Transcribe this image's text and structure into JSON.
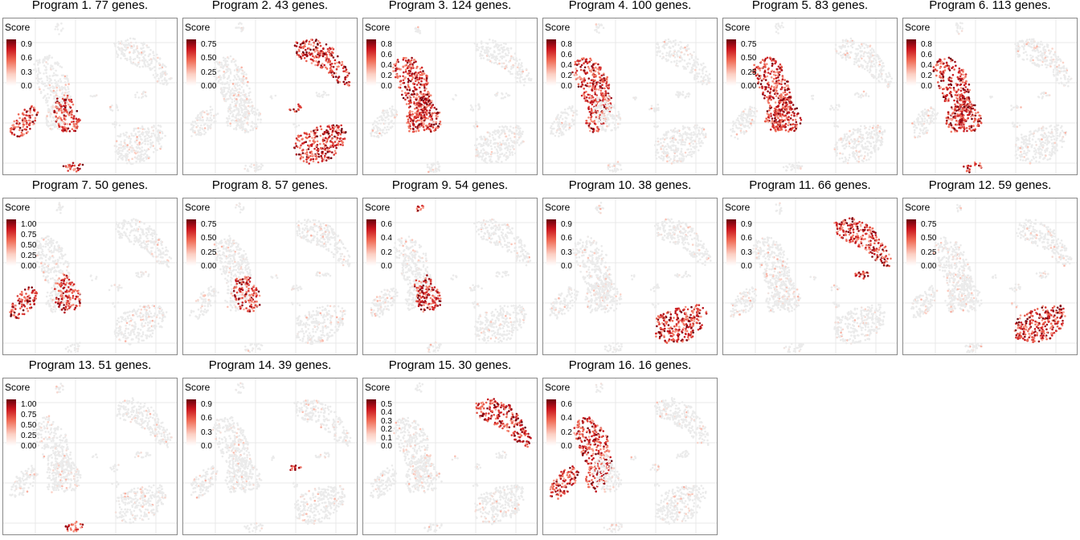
{
  "colors": {
    "low": "#ebebeb",
    "mid": "#f4a08c",
    "high": "#d7191c",
    "max": "#67000d",
    "frame": "#8a8a8a",
    "grid": "#e9e9e9"
  },
  "legend_title": "Score",
  "chart_data": [
    {
      "type": "scatter",
      "title": "Program 1. 77 genes.",
      "legend_title": "Score",
      "ticks": [
        "0.9",
        "0.6",
        "0.3",
        "0.0"
      ],
      "highlight": [
        "left-arm",
        "mid-right-blob",
        "bottom-small"
      ]
    },
    {
      "type": "scatter",
      "title": "Program 2. 43 genes.",
      "legend_title": "Score",
      "ticks": [
        "0.75",
        "0.50",
        "0.25",
        "0.00"
      ],
      "highlight": [
        "bottom-right-ring",
        "upper-right-arm",
        "small-right"
      ]
    },
    {
      "type": "scatter",
      "title": "Program 3. 124 genes.",
      "legend_title": "Score",
      "ticks": [
        "0.8",
        "0.6",
        "0.4",
        "0.2",
        "0.0"
      ],
      "highlight": [
        "main-body",
        "mid-right-blob"
      ]
    },
    {
      "type": "scatter",
      "title": "Program 4. 100 genes.",
      "legend_title": "Score",
      "ticks": [
        "0.8",
        "0.6",
        "0.4",
        "0.2",
        "0.0"
      ],
      "highlight": [
        "main-body"
      ]
    },
    {
      "type": "scatter",
      "title": "Program 5. 83 genes.",
      "legend_title": "Score",
      "ticks": [
        "0.75",
        "0.50",
        "0.25",
        "0.00"
      ],
      "highlight": [
        "main-body",
        "mid-right-blob"
      ]
    },
    {
      "type": "scatter",
      "title": "Program 6. 113 genes.",
      "legend_title": "Score",
      "ticks": [
        "0.8",
        "0.6",
        "0.4",
        "0.2",
        "0.0"
      ],
      "highlight": [
        "mid-right-blob",
        "main-body",
        "bottom-small"
      ]
    },
    {
      "type": "scatter",
      "title": "Program 7. 50 genes.",
      "legend_title": "Score",
      "ticks": [
        "1.00",
        "0.75",
        "0.50",
        "0.25",
        "0.00"
      ],
      "highlight": [
        "left-arm",
        "mid-right-blob"
      ]
    },
    {
      "type": "scatter",
      "title": "Program 8. 57 genes.",
      "legend_title": "Score",
      "ticks": [
        "0.75",
        "0.50",
        "0.25",
        "0.00"
      ],
      "highlight": [
        "mid-right-blob"
      ]
    },
    {
      "type": "scatter",
      "title": "Program 9. 54 genes.",
      "legend_title": "Score",
      "ticks": [
        "0.6",
        "0.4",
        "0.2",
        "0.0"
      ],
      "highlight": [
        "top-tiny",
        "mid-right-blob"
      ]
    },
    {
      "type": "scatter",
      "title": "Program 10. 38 genes.",
      "legend_title": "Score",
      "ticks": [
        "0.9",
        "0.6",
        "0.3",
        "0.0"
      ],
      "highlight": [
        "bottom-right-ring"
      ]
    },
    {
      "type": "scatter",
      "title": "Program 11. 66 genes.",
      "legend_title": "Score",
      "ticks": [
        "0.9",
        "0.6",
        "0.3",
        "0.0"
      ],
      "highlight": [
        "upper-right-arm",
        "small-mid"
      ]
    },
    {
      "type": "scatter",
      "title": "Program 12. 59 genes.",
      "legend_title": "Score",
      "ticks": [
        "0.75",
        "0.50",
        "0.25",
        "0.00"
      ],
      "highlight": [
        "bottom-right-ring"
      ]
    },
    {
      "type": "scatter",
      "title": "Program 13. 51 genes.",
      "legend_title": "Score",
      "ticks": [
        "1.00",
        "0.75",
        "0.50",
        "0.25",
        "0.00"
      ],
      "highlight": [
        "bottom-small"
      ]
    },
    {
      "type": "scatter",
      "title": "Program 14. 39 genes.",
      "legend_title": "Score",
      "ticks": [
        "0.9",
        "0.6",
        "0.3",
        "0.0"
      ],
      "highlight": [
        "small-right"
      ]
    },
    {
      "type": "scatter",
      "title": "Program 15. 30 genes.",
      "legend_title": "Score",
      "ticks": [
        "0.5",
        "0.4",
        "0.3",
        "0.2",
        "0.1",
        "0.0"
      ],
      "highlight": [
        "upper-right-arm"
      ]
    },
    {
      "type": "scatter",
      "title": "Program 16. 16 genes.",
      "legend_title": "Score",
      "ticks": [
        "0.6",
        "0.4",
        "0.2",
        "0.0"
      ],
      "highlight": [
        "main-body",
        "left-arm"
      ]
    }
  ]
}
